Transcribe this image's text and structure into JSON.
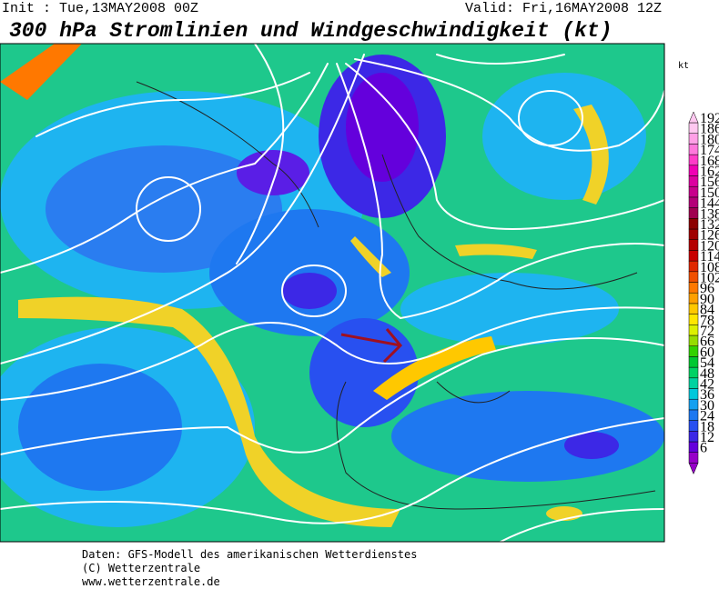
{
  "header": {
    "init": "Init : Tue,13MAY2008 00Z",
    "valid": "Valid: Fri,16MAY2008 12Z",
    "title": "300 hPa Stromlinien und Windgeschwindigkeit (kt)"
  },
  "colorbar": {
    "unit": "kt",
    "levels": [
      6,
      12,
      18,
      24,
      30,
      36,
      42,
      48,
      54,
      60,
      66,
      72,
      78,
      84,
      90,
      96,
      102,
      108,
      114,
      120,
      126,
      132,
      138,
      144,
      150,
      156,
      162,
      168,
      174,
      180,
      186,
      192
    ],
    "colors": [
      "#9600c8",
      "#6400dc",
      "#3c28e6",
      "#2850f0",
      "#1e78f0",
      "#14a0f0",
      "#00c8dc",
      "#00d2a0",
      "#00d264",
      "#00c832",
      "#32d200",
      "#96dc00",
      "#dcf000",
      "#ffe600",
      "#ffc800",
      "#ffa000",
      "#ff7800",
      "#f05000",
      "#e02800",
      "#c80000",
      "#b40000",
      "#a00000",
      "#8c0000",
      "#a00050",
      "#b40078",
      "#c8008c",
      "#dc00a0",
      "#f000b4",
      "#ff3cc8",
      "#ff78dc",
      "#ffa0e6",
      "#ffc8f0"
    ]
  },
  "footer": {
    "lines": [
      "Daten: GFS-Modell des amerikanischen Wetterdienstes",
      "(C) Wetterzentrale",
      "www.wetterzentrale.de"
    ]
  }
}
